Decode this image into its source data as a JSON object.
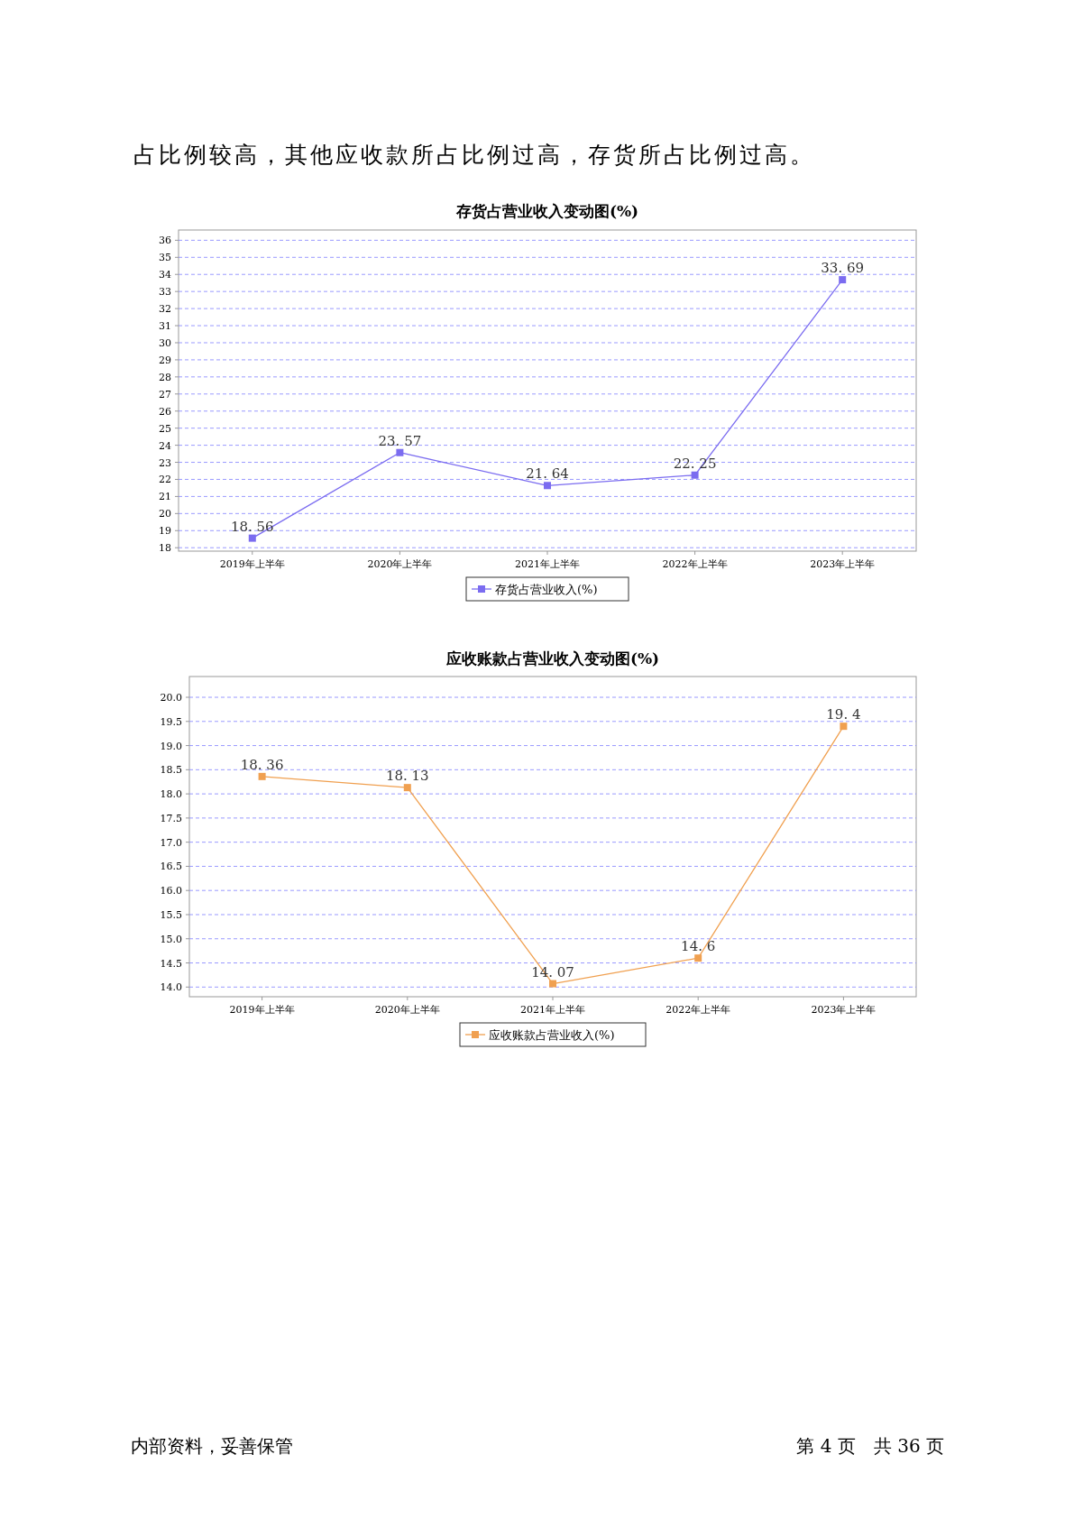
{
  "chart_data": [
    {
      "type": "line",
      "title": "存货占营业收入变动图(%)",
      "categories": [
        "2019年上半年",
        "2020年上半年",
        "2021年上半年",
        "2022年上半年",
        "2023年上半年"
      ],
      "series": [
        {
          "name": "存货占营业收入(%)",
          "color": "#7b6cf0",
          "values": [
            18.56,
            23.57,
            21.64,
            22.25,
            33.69
          ]
        }
      ],
      "ylim": [
        17.8,
        36.6
      ],
      "yticks": [
        18,
        19,
        20,
        21,
        22,
        23,
        24,
        25,
        26,
        27,
        28,
        29,
        30,
        31,
        32,
        33,
        34,
        35,
        36
      ],
      "grid": "y",
      "legend": "bottom",
      "marker": "square",
      "line_style": "solid",
      "data_labels": true,
      "annotations": [
        "占比例较高，其他应收款所占比例过高，存货所占比例过高。"
      ]
    },
    {
      "type": "line",
      "title": "应收账款占营业收入变动图(%)",
      "categories": [
        "2019年上半年",
        "2020年上半年",
        "2021年上半年",
        "2022年上半年",
        "2023年上半年"
      ],
      "series": [
        {
          "name": "应收账款占营业收入(%)",
          "color": "#f0a050",
          "values": [
            18.36,
            18.13,
            14.07,
            14.6,
            19.4
          ]
        }
      ],
      "ylim": [
        13.8,
        20.43
      ],
      "yticks": [
        {
          "value": 14,
          "label": "14.0"
        },
        {
          "value": 14.5,
          "label": "14.5"
        },
        {
          "value": 15,
          "label": "15.0"
        },
        {
          "value": 15.5,
          "label": "15.5"
        },
        {
          "value": 16,
          "label": "16.0"
        },
        {
          "value": 16.5,
          "label": "16.5"
        },
        {
          "value": 17,
          "label": "17.0"
        },
        {
          "value": 17.5,
          "label": "17.5"
        },
        {
          "value": 18,
          "label": "18.0"
        },
        {
          "value": 18.5,
          "label": "18.5"
        },
        {
          "value": 19,
          "label": "19.0"
        },
        {
          "value": 19.5,
          "label": "19.5"
        },
        {
          "value": 20,
          "label": "20.0"
        }
      ],
      "grid": "y",
      "legend": "bottom",
      "marker": "square",
      "line_style": "solid",
      "data_labels": true,
      "annotations": [
        "内部资料，妥善保管",
        "第 4 页　共 36 页"
      ]
    }
  ]
}
